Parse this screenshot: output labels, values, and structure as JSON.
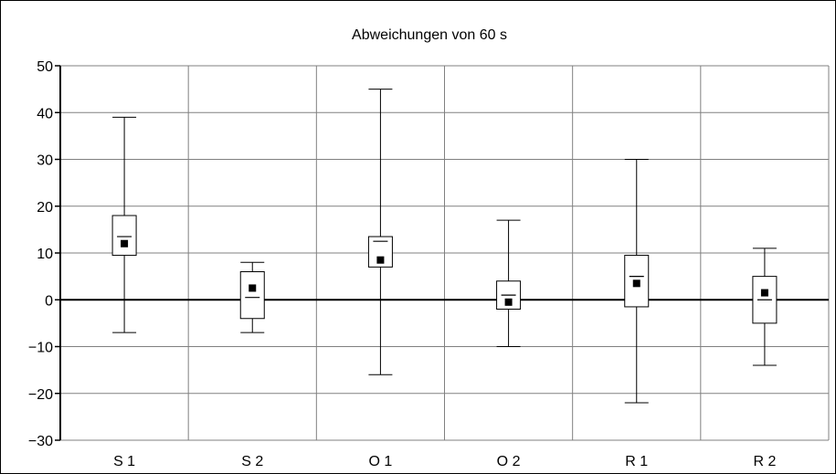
{
  "chart_data": {
    "type": "boxplot",
    "title": "Abweichungen von 60 s",
    "categories": [
      "S 1",
      "S 2",
      "O 1",
      "O 2",
      "R 1",
      "R 2"
    ],
    "boxes": [
      {
        "label": "S 1",
        "min": -7,
        "q1": 9.5,
        "median": 13.5,
        "q3": 18,
        "max": 39,
        "mean": 12
      },
      {
        "label": "S 2",
        "min": -7,
        "q1": -4,
        "median": 0.5,
        "q3": 6,
        "max": 8,
        "mean": 2.5
      },
      {
        "label": "O 1",
        "min": -16,
        "q1": 7,
        "median": 12.5,
        "q3": 13.5,
        "max": 45,
        "mean": 8.5
      },
      {
        "label": "O 2",
        "min": -10,
        "q1": -2,
        "median": 1,
        "q3": 4,
        "max": 17,
        "mean": -0.5
      },
      {
        "label": "R 1",
        "min": -22,
        "q1": -1.5,
        "median": 5,
        "q3": 9.5,
        "max": 30,
        "mean": 3.5
      },
      {
        "label": "R 2",
        "min": -14,
        "q1": -5,
        "median": 0,
        "q3": 5,
        "max": 11,
        "mean": 1.5
      }
    ],
    "ylim": [
      -30,
      50
    ],
    "yticks": [
      -30,
      -20,
      -10,
      0,
      10,
      20,
      30,
      40,
      50
    ],
    "ytick_labels": [
      "−30",
      "−20",
      "−10",
      "0",
      "10",
      "20",
      "30",
      "40",
      "50"
    ],
    "grid": true,
    "reference_line": 0
  }
}
